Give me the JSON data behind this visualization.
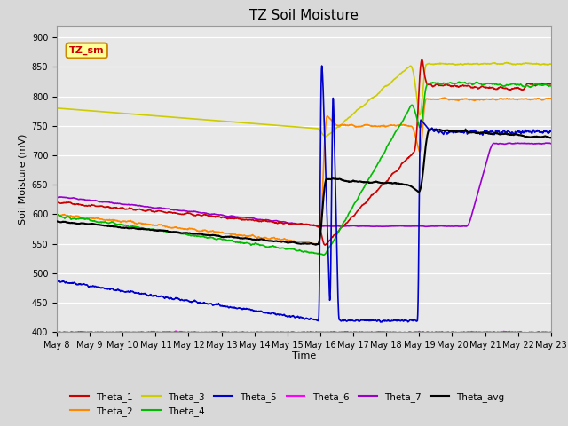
{
  "title": "TZ Soil Moisture",
  "xlabel": "Time",
  "ylabel": "Soil Moisture (mV)",
  "ylim": [
    400,
    920
  ],
  "yticks": [
    400,
    450,
    500,
    550,
    600,
    650,
    700,
    750,
    800,
    850,
    900
  ],
  "bg_color": "#d8d8d8",
  "plot_bg_color": "#e8e8e8",
  "grid_color": "#ffffff",
  "series_colors": {
    "Theta_1": "#cc0000",
    "Theta_2": "#ff8800",
    "Theta_3": "#cccc00",
    "Theta_4": "#00bb00",
    "Theta_5": "#0000cc",
    "Theta_6": "#ff00ff",
    "Theta_7": "#9900cc",
    "Theta_avg": "#000000"
  },
  "legend_label": "TZ_sm",
  "legend_box_color": "#ffff99",
  "legend_box_border": "#cc8800"
}
